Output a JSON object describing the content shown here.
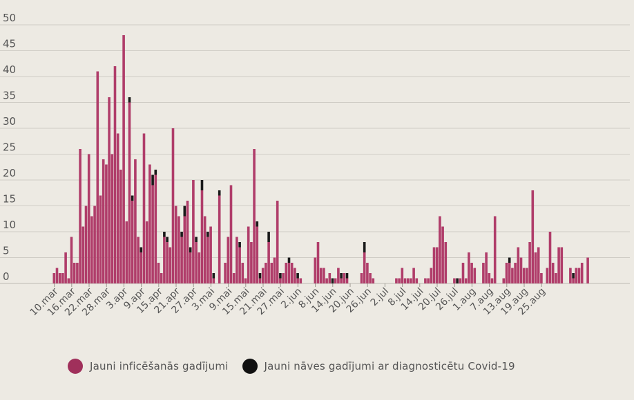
{
  "chart_data": {
    "type": "bar",
    "stacked": true,
    "title": "",
    "xlabel": "",
    "ylabel": "",
    "ylim": [
      0,
      50
    ],
    "yticks": [
      0,
      5,
      10,
      15,
      20,
      25,
      30,
      35,
      40,
      45,
      50
    ],
    "grid": true,
    "legend_position": "bottom",
    "x_tick_labels": [
      "10.mar",
      "16.mar",
      "22.mar",
      "28.mar",
      "3.apr",
      "9.apr",
      "15.apr",
      "21.apr",
      "27.apr",
      "3.mai",
      "9.mai",
      "15.mai",
      "21.mai",
      "27.mai",
      "2.jun",
      "8.jun",
      "14.jun",
      "20.jun",
      "26.jun",
      "2.jul",
      "8.jul",
      "14.jul",
      "20.jul",
      "26.jul",
      "1.aug",
      "7.aug",
      "13.aug",
      "19.aug",
      "25.aug"
    ],
    "series": [
      {
        "name": "Jauni inficēšanās gadījumi",
        "color": "#b03d6a",
        "values": [
          2,
          3,
          2,
          2,
          6,
          1,
          9,
          4,
          4,
          26,
          11,
          15,
          25,
          13,
          15,
          41,
          17,
          24,
          23,
          36,
          25,
          42,
          29,
          22,
          48,
          12,
          35,
          16,
          24,
          9,
          6,
          29,
          12,
          23,
          19,
          21,
          4,
          2,
          9,
          8,
          7,
          30,
          15,
          13,
          9,
          13,
          16,
          6,
          20,
          8,
          6,
          18,
          13,
          9,
          11,
          1,
          0,
          17,
          0,
          4,
          9,
          19,
          2,
          9,
          7,
          4,
          1,
          11,
          8,
          26,
          11,
          1,
          3,
          4,
          8,
          4,
          5,
          16,
          1,
          2,
          4,
          4,
          4,
          3,
          1,
          1,
          0,
          0,
          0,
          0,
          5,
          8,
          3,
          3,
          1,
          2,
          0,
          1,
          3,
          1,
          2,
          1,
          0,
          0,
          0,
          0,
          2,
          6,
          4,
          2,
          1,
          0,
          0,
          0,
          0,
          0,
          0,
          0,
          1,
          1,
          3,
          1,
          1,
          1,
          3,
          1,
          0,
          0,
          1,
          1,
          3,
          7,
          7,
          13,
          11,
          8,
          0,
          0,
          1,
          0,
          1,
          4,
          1,
          6,
          4,
          3,
          0,
          0,
          4,
          6,
          2,
          1,
          13,
          0,
          0,
          1,
          4,
          4,
          3,
          4,
          7,
          5,
          3,
          3,
          8,
          18,
          6,
          7,
          2,
          0,
          3,
          10,
          4,
          2,
          7,
          7,
          0,
          0,
          3,
          1,
          3,
          3,
          4,
          0,
          5
        ],
        "note": ""
      },
      {
        "name": "Jauni nāves gadījumi ar diagnosticētu Covid-19",
        "color": "#1a1a1a",
        "values": [
          0,
          0,
          0,
          0,
          0,
          0,
          0,
          0,
          0,
          0,
          0,
          0,
          0,
          0,
          0,
          0,
          0,
          0,
          0,
          0,
          0,
          0,
          0,
          0,
          0,
          0,
          1,
          1,
          0,
          0,
          1,
          0,
          0,
          0,
          2,
          1,
          0,
          0,
          1,
          1,
          0,
          0,
          0,
          0,
          1,
          2,
          0,
          1,
          0,
          1,
          0,
          2,
          0,
          1,
          0,
          1,
          0,
          1,
          0,
          0,
          0,
          0,
          0,
          0,
          1,
          0,
          0,
          0,
          0,
          0,
          1,
          1,
          0,
          0,
          2,
          0,
          0,
          0,
          1,
          0,
          0,
          1,
          0,
          0,
          1,
          0,
          0,
          0,
          0,
          0,
          0,
          0,
          0,
          0,
          0,
          0,
          1,
          0,
          0,
          1,
          0,
          1,
          0,
          0,
          0,
          0,
          0,
          2,
          0,
          0,
          0,
          0,
          0,
          0,
          0,
          0,
          0,
          0,
          0,
          0,
          0,
          0,
          0,
          0,
          0,
          0,
          0,
          0,
          0,
          0,
          0,
          0,
          0,
          0,
          0,
          0,
          0,
          0,
          0,
          1,
          0,
          0,
          0,
          0,
          0,
          0,
          0,
          0,
          0,
          0,
          0,
          0,
          0,
          0,
          0,
          0,
          0,
          1,
          0,
          0,
          0,
          0,
          0,
          0,
          0,
          0,
          0,
          0,
          0,
          0,
          0,
          0,
          0,
          0,
          0,
          0,
          0,
          0,
          0,
          1,
          0,
          0,
          0,
          0,
          0,
          0,
          0,
          0
        ]
      }
    ]
  }
}
